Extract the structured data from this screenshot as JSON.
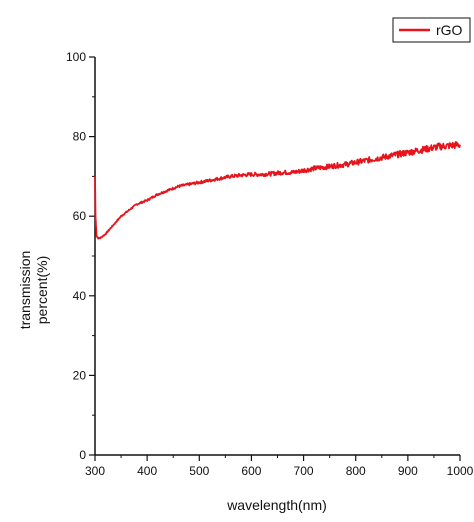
{
  "colors": {
    "series": "#e8141b",
    "axis": "#111111",
    "background": "#ffffff"
  },
  "legend": {
    "placement": "top-right",
    "label": "rGO"
  },
  "chart_data": {
    "type": "line",
    "title": "",
    "xlabel": "wavelength(nm)",
    "ylabel_lines": [
      "transmission",
      "percent(%)"
    ],
    "xlim": [
      300,
      1000
    ],
    "ylim": [
      0,
      100
    ],
    "xticks": [
      300,
      400,
      500,
      600,
      700,
      800,
      900,
      1000
    ],
    "yticks": [
      0,
      20,
      40,
      60,
      80,
      100
    ],
    "grid": false,
    "series": [
      {
        "name": "rGO",
        "x": [
          300,
          301,
          303,
          306,
          310,
          315,
          320,
          330,
          340,
          350,
          360,
          370,
          380,
          390,
          400,
          420,
          440,
          460,
          480,
          500,
          520,
          540,
          560,
          580,
          600,
          620,
          640,
          660,
          680,
          700,
          720,
          740,
          760,
          780,
          800,
          820,
          840,
          860,
          880,
          900,
          920,
          940,
          960,
          980,
          1000
        ],
        "y": [
          70,
          60,
          55,
          54.5,
          54.5,
          55,
          55.5,
          57,
          58.5,
          60,
          61,
          62,
          63,
          63.5,
          64,
          65.5,
          66.5,
          67.5,
          68,
          68.5,
          69,
          69.5,
          70,
          70.3,
          70.5,
          70.5,
          70.7,
          71,
          71,
          71.5,
          72,
          72.3,
          72.7,
          73,
          73.5,
          74,
          74.5,
          75,
          75.5,
          76,
          76.5,
          77,
          77.5,
          77.7,
          78
        ]
      }
    ]
  }
}
